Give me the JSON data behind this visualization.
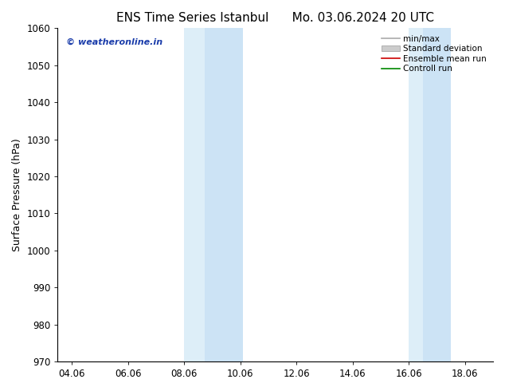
{
  "title_left": "ENS Time Series Istanbul",
  "title_right": "Mo. 03.06.2024 20 UTC",
  "ylabel": "Surface Pressure (hPa)",
  "ylim": [
    970,
    1060
  ],
  "yticks": [
    970,
    980,
    990,
    1000,
    1010,
    1020,
    1030,
    1040,
    1050,
    1060
  ],
  "xtick_labels": [
    "04.06",
    "06.06",
    "08.06",
    "10.06",
    "12.06",
    "14.06",
    "16.06",
    "18.06"
  ],
  "xtick_positions": [
    0,
    2,
    4,
    6,
    8,
    10,
    12,
    14
  ],
  "xmin": -0.5,
  "xmax": 15.0,
  "shaded_bands": [
    {
      "xmin": 4.0,
      "xmax": 4.75,
      "color": "#ddeef8"
    },
    {
      "xmin": 4.75,
      "xmax": 6.1,
      "color": "#cce3f5"
    },
    {
      "xmin": 12.0,
      "xmax": 12.5,
      "color": "#ddeef8"
    },
    {
      "xmin": 12.5,
      "xmax": 13.5,
      "color": "#cce3f5"
    }
  ],
  "watermark": "© weatheronline.in",
  "watermark_color": "#1a3caa",
  "legend_items": [
    {
      "label": "min/max",
      "color": "#aaaaaa",
      "type": "line"
    },
    {
      "label": "Standard deviation",
      "color": "#cccccc",
      "type": "fill"
    },
    {
      "label": "Ensemble mean run",
      "color": "#cc0000",
      "type": "line"
    },
    {
      "label": "Controll run",
      "color": "#008800",
      "type": "line"
    }
  ],
  "bg_color": "#ffffff",
  "spine_color": "#000000",
  "tick_label_size": 8.5,
  "axis_label_size": 9,
  "title_fontsize": 11
}
